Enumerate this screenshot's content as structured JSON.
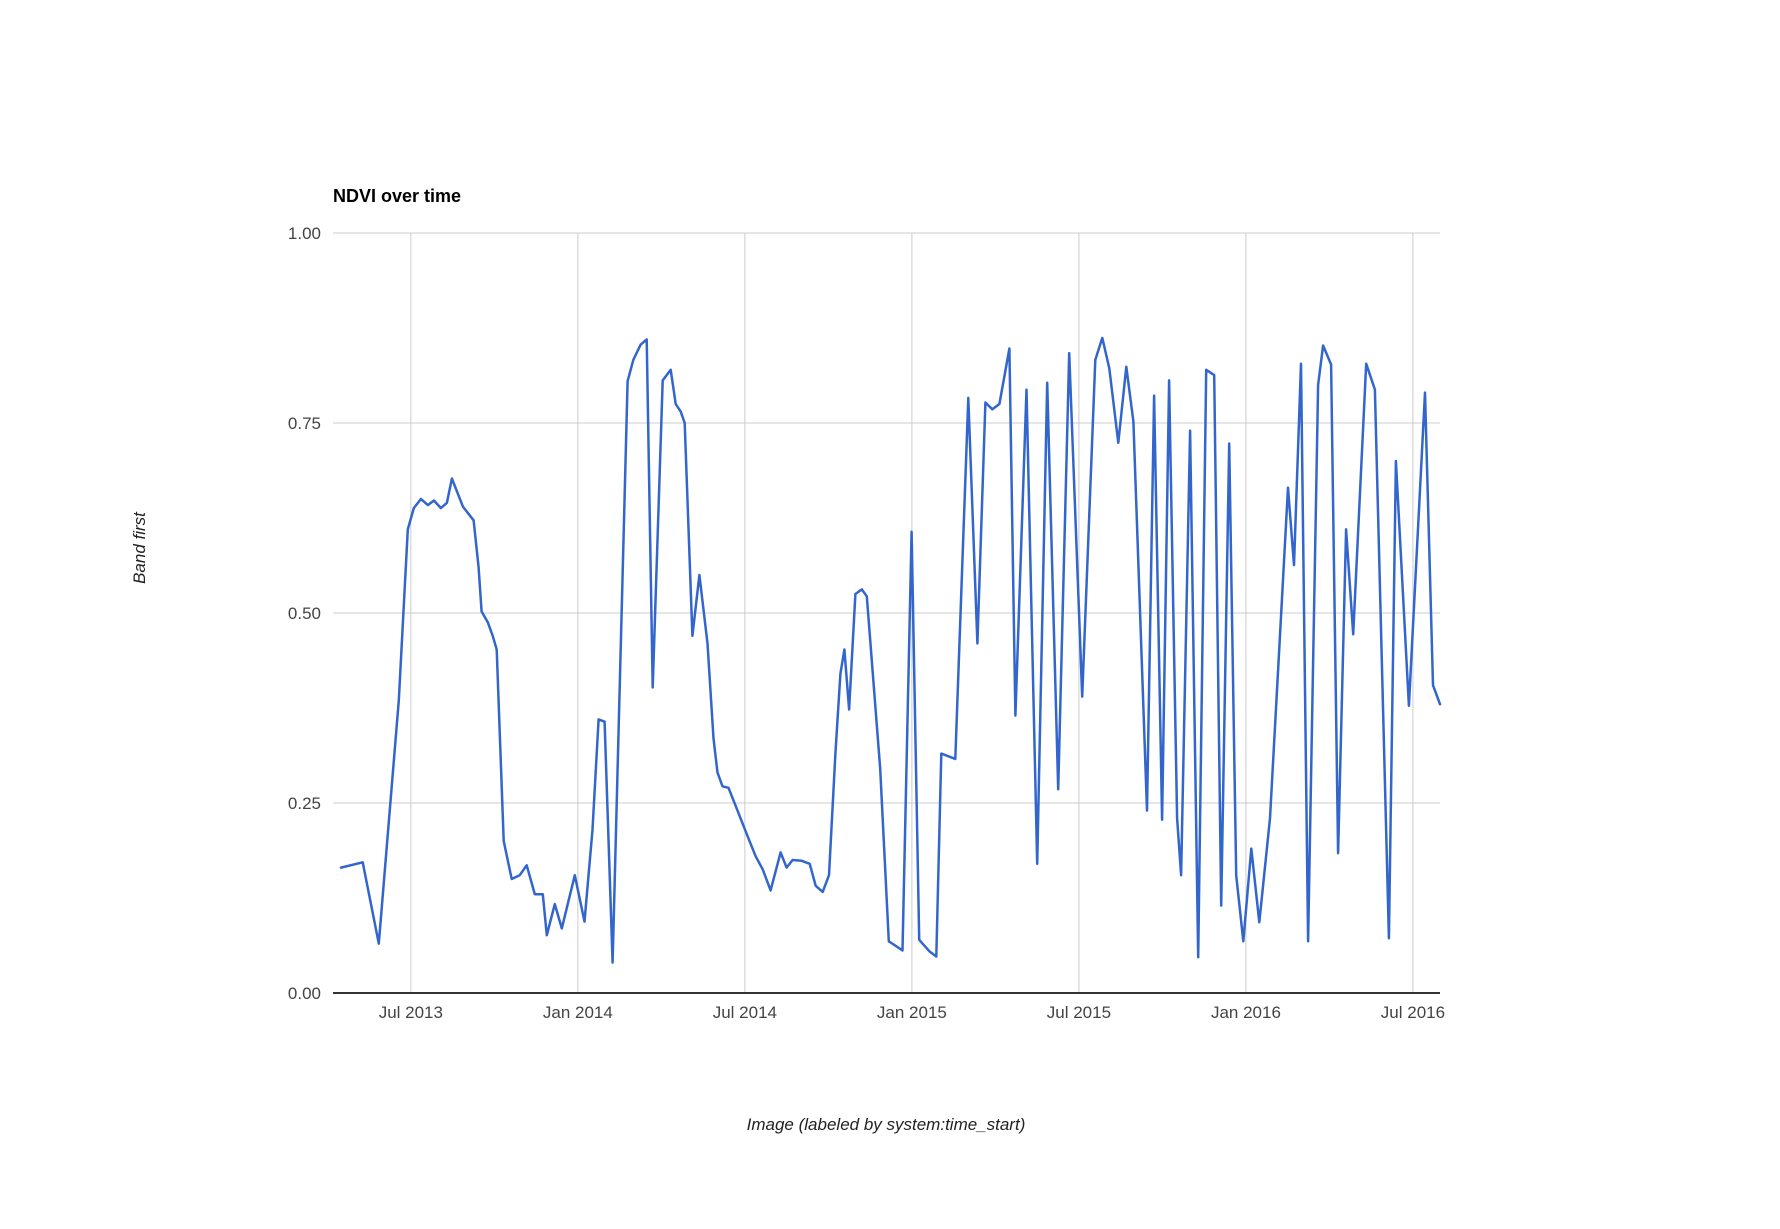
{
  "title": "NDVI over time",
  "x_axis": {
    "title": "Image (labeled by system:time_start)",
    "ticks": [
      {
        "t": 2013.5,
        "label": "Jul 2013"
      },
      {
        "t": 2014.0,
        "label": "Jan 2014"
      },
      {
        "t": 2014.5,
        "label": "Jul 2014"
      },
      {
        "t": 2015.0,
        "label": "Jan 2015"
      },
      {
        "t": 2015.5,
        "label": "Jul 2015"
      },
      {
        "t": 2016.0,
        "label": "Jan 2016"
      },
      {
        "t": 2016.5,
        "label": "Jul 2016"
      }
    ]
  },
  "y_axis": {
    "title": "Band first",
    "ticks": [
      {
        "v": 0.0,
        "label": "0.00"
      },
      {
        "v": 0.25,
        "label": "0.25"
      },
      {
        "v": 0.5,
        "label": "0.50"
      },
      {
        "v": 0.75,
        "label": "0.75"
      },
      {
        "v": 1.0,
        "label": "1.00"
      }
    ]
  },
  "colors": {
    "line": "#3366cc",
    "grid": "#cccccc",
    "baseline": "#333333",
    "tick_text": "#444444",
    "title_text": "#000000",
    "axis_title_text": "#222222",
    "background": "#ffffff"
  },
  "chart_data": {
    "type": "line",
    "title": "NDVI over time",
    "xlabel": "Image (labeled by system:time_start)",
    "ylabel": "Band first",
    "x_range": [
      2013.267,
      2016.581
    ],
    "y_range": [
      0,
      1
    ],
    "grid": true,
    "legend": "none",
    "series": [
      {
        "name": "first",
        "color": "#3366cc",
        "points": [
          [
            2013.291,
            0.165
          ],
          [
            2013.356,
            0.172
          ],
          [
            2013.404,
            0.065
          ],
          [
            2013.464,
            0.385
          ],
          [
            2013.491,
            0.61
          ],
          [
            2013.509,
            0.638
          ],
          [
            2013.53,
            0.65
          ],
          [
            2013.551,
            0.642
          ],
          [
            2013.569,
            0.648
          ],
          [
            2013.59,
            0.638
          ],
          [
            2013.608,
            0.645
          ],
          [
            2013.623,
            0.677
          ],
          [
            2013.656,
            0.64
          ],
          [
            2013.688,
            0.622
          ],
          [
            2013.703,
            0.56
          ],
          [
            2013.712,
            0.502
          ],
          [
            2013.73,
            0.488
          ],
          [
            2013.745,
            0.47
          ],
          [
            2013.757,
            0.452
          ],
          [
            2013.778,
            0.2
          ],
          [
            2013.802,
            0.15
          ],
          [
            2013.826,
            0.155
          ],
          [
            2013.847,
            0.168
          ],
          [
            2013.871,
            0.13
          ],
          [
            2013.895,
            0.13
          ],
          [
            2013.907,
            0.076
          ],
          [
            2013.931,
            0.117
          ],
          [
            2013.952,
            0.085
          ],
          [
            2013.991,
            0.155
          ],
          [
            2014.02,
            0.094
          ],
          [
            2014.044,
            0.215
          ],
          [
            2014.062,
            0.36
          ],
          [
            2014.08,
            0.357
          ],
          [
            2014.104,
            0.04
          ],
          [
            2014.149,
            0.805
          ],
          [
            2014.166,
            0.833
          ],
          [
            2014.188,
            0.853
          ],
          [
            2014.206,
            0.86
          ],
          [
            2014.224,
            0.402
          ],
          [
            2014.254,
            0.806
          ],
          [
            2014.278,
            0.82
          ],
          [
            2014.293,
            0.775
          ],
          [
            2014.308,
            0.765
          ],
          [
            2014.32,
            0.75
          ],
          [
            2014.343,
            0.47
          ],
          [
            2014.364,
            0.55
          ],
          [
            2014.388,
            0.46
          ],
          [
            2014.406,
            0.335
          ],
          [
            2014.418,
            0.29
          ],
          [
            2014.433,
            0.272
          ],
          [
            2014.451,
            0.27
          ],
          [
            2014.478,
            0.24
          ],
          [
            2014.505,
            0.21
          ],
          [
            2014.532,
            0.18
          ],
          [
            2014.553,
            0.163
          ],
          [
            2014.577,
            0.135
          ],
          [
            2014.607,
            0.185
          ],
          [
            2014.625,
            0.165
          ],
          [
            2014.643,
            0.175
          ],
          [
            2014.67,
            0.174
          ],
          [
            2014.694,
            0.17
          ],
          [
            2014.712,
            0.141
          ],
          [
            2014.733,
            0.133
          ],
          [
            2014.752,
            0.155
          ],
          [
            2014.771,
            0.315
          ],
          [
            2014.786,
            0.42
          ],
          [
            2014.798,
            0.452
          ],
          [
            2014.812,
            0.373
          ],
          [
            2014.831,
            0.525
          ],
          [
            2014.85,
            0.531
          ],
          [
            2014.865,
            0.522
          ],
          [
            2014.905,
            0.295
          ],
          [
            2014.931,
            0.068
          ],
          [
            2014.972,
            0.056
          ],
          [
            2014.999,
            0.607
          ],
          [
            2015.022,
            0.07
          ],
          [
            2015.052,
            0.055
          ],
          [
            2015.073,
            0.048
          ],
          [
            2015.088,
            0.315
          ],
          [
            2015.13,
            0.308
          ],
          [
            2015.169,
            0.783
          ],
          [
            2015.196,
            0.46
          ],
          [
            2015.22,
            0.777
          ],
          [
            2015.241,
            0.768
          ],
          [
            2015.262,
            0.775
          ],
          [
            2015.292,
            0.848
          ],
          [
            2015.31,
            0.365
          ],
          [
            2015.343,
            0.794
          ],
          [
            2015.375,
            0.17
          ],
          [
            2015.405,
            0.803
          ],
          [
            2015.438,
            0.268
          ],
          [
            2015.471,
            0.842
          ],
          [
            2015.51,
            0.39
          ],
          [
            2015.549,
            0.833
          ],
          [
            2015.57,
            0.862
          ],
          [
            2015.591,
            0.822
          ],
          [
            2015.618,
            0.724
          ],
          [
            2015.642,
            0.824
          ],
          [
            2015.663,
            0.752
          ],
          [
            2015.704,
            0.24
          ],
          [
            2015.725,
            0.786
          ],
          [
            2015.749,
            0.228
          ],
          [
            2015.77,
            0.806
          ],
          [
            2015.794,
            0.23
          ],
          [
            2015.806,
            0.155
          ],
          [
            2015.833,
            0.74
          ],
          [
            2015.857,
            0.047
          ],
          [
            2015.881,
            0.82
          ],
          [
            2015.905,
            0.813
          ],
          [
            2015.926,
            0.115
          ],
          [
            2015.95,
            0.723
          ],
          [
            2015.971,
            0.155
          ],
          [
            2015.992,
            0.068
          ],
          [
            2016.016,
            0.19
          ],
          [
            2016.04,
            0.093
          ],
          [
            2016.072,
            0.23
          ],
          [
            2016.105,
            0.495
          ],
          [
            2016.126,
            0.665
          ],
          [
            2016.144,
            0.563
          ],
          [
            2016.165,
            0.828
          ],
          [
            2016.186,
            0.068
          ],
          [
            2016.216,
            0.8
          ],
          [
            2016.231,
            0.852
          ],
          [
            2016.255,
            0.827
          ],
          [
            2016.276,
            0.184
          ],
          [
            2016.3,
            0.61
          ],
          [
            2016.321,
            0.472
          ],
          [
            2016.36,
            0.828
          ],
          [
            2016.386,
            0.794
          ],
          [
            2016.428,
            0.072
          ],
          [
            2016.449,
            0.7
          ],
          [
            2016.488,
            0.378
          ],
          [
            2016.536,
            0.79
          ],
          [
            2016.56,
            0.405
          ],
          [
            2016.581,
            0.38
          ]
        ]
      }
    ]
  }
}
